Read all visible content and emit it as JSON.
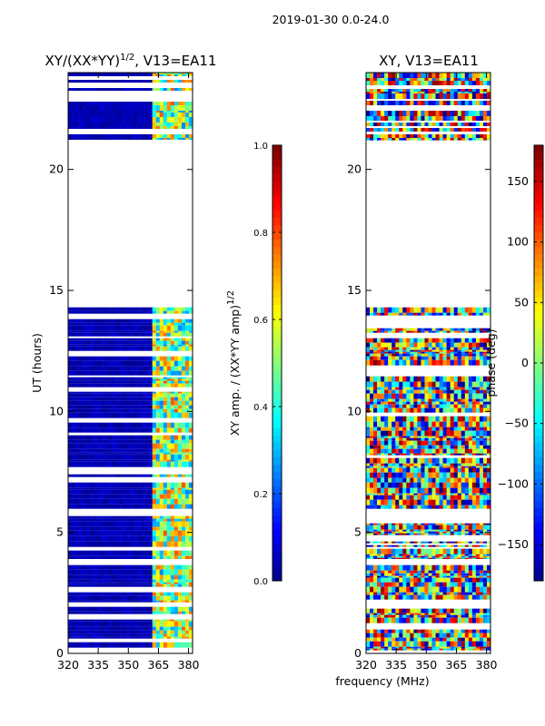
{
  "suptitle": "2019-01-30 0.0-24.0",
  "chart_data": [
    {
      "type": "heatmap",
      "title_base": "XY/(XX*YY)",
      "title_exp": "1/2",
      "title_suffix": ", V13=EA11",
      "xlabel": "",
      "ylabel": "UT (hours)",
      "xlim": [
        320,
        382
      ],
      "ylim": [
        0,
        24
      ],
      "xticks": [
        320,
        335,
        350,
        365,
        380
      ],
      "yticks": [
        0,
        5,
        10,
        15,
        20
      ],
      "colorbar": {
        "label_base": "XY amp. / (XX*YY amp)",
        "label_exp": "1/2",
        "range": [
          0.0,
          1.0
        ],
        "ticks": [
          "0.0",
          "0.2",
          "0.4",
          "0.6",
          "0.8",
          "1.0"
        ],
        "tick_values": [
          0.0,
          0.2,
          0.4,
          0.6,
          0.8,
          1.0
        ],
        "colormap": "jet"
      },
      "data_hours": [
        [
          0,
          3.65
        ],
        [
          3.9,
          14.3
        ],
        [
          21.2,
          24.0
        ]
      ]
    },
    {
      "type": "heatmap",
      "title": "XY, V13=EA11",
      "xlabel": "frequency (MHz)",
      "ylabel": "",
      "xlim": [
        320,
        382
      ],
      "ylim": [
        0,
        24
      ],
      "xticks": [
        320,
        335,
        350,
        365,
        380
      ],
      "yticks": [
        0,
        5,
        10,
        15,
        20
      ],
      "colorbar": {
        "label": "phase (deg)",
        "range": [
          -180,
          180
        ],
        "ticks": [
          "−150",
          "−100",
          "−50",
          "0",
          "50",
          "100",
          "150"
        ],
        "tick_values": [
          -150,
          -100,
          -50,
          0,
          50,
          100,
          150
        ],
        "colormap": "jet"
      },
      "data_hours": [
        [
          0,
          3.65
        ],
        [
          3.9,
          14.3
        ],
        [
          21.2,
          24.0
        ]
      ]
    }
  ]
}
